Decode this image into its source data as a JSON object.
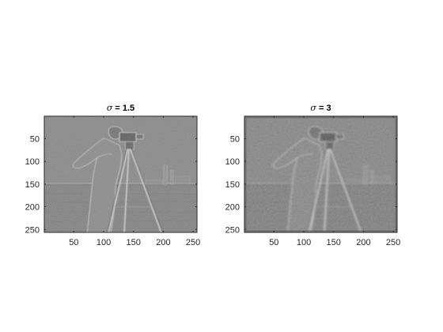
{
  "figure": {
    "background": "#ffffff",
    "axes_color": "#262626",
    "panels": [
      {
        "title_symbol": "σ",
        "title_value": " = 1.5",
        "image_description_tone": "#868686",
        "x_ticks": [
          "50",
          "100",
          "150",
          "200",
          "250"
        ],
        "y_ticks": [
          "50",
          "100",
          "150",
          "200",
          "250"
        ],
        "x_tick_values": [
          50,
          100,
          150,
          200,
          250
        ],
        "y_tick_values": [
          50,
          100,
          150,
          200,
          250
        ],
        "x_range": [
          0.5,
          256.5
        ],
        "y_range": [
          0.5,
          256.5
        ],
        "blur_level": 1.5
      },
      {
        "title_symbol": "σ",
        "title_value": " = 3",
        "image_description_tone": "#868686",
        "x_ticks": [
          "50",
          "100",
          "150",
          "200",
          "250"
        ],
        "y_ticks": [
          "50",
          "100",
          "150",
          "200",
          "250"
        ],
        "x_tick_values": [
          50,
          100,
          150,
          200,
          250
        ],
        "y_tick_values": [
          50,
          100,
          150,
          200,
          250
        ],
        "x_range": [
          0.5,
          256.5
        ],
        "y_range": [
          0.5,
          256.5
        ],
        "blur_level": 3
      }
    ]
  }
}
